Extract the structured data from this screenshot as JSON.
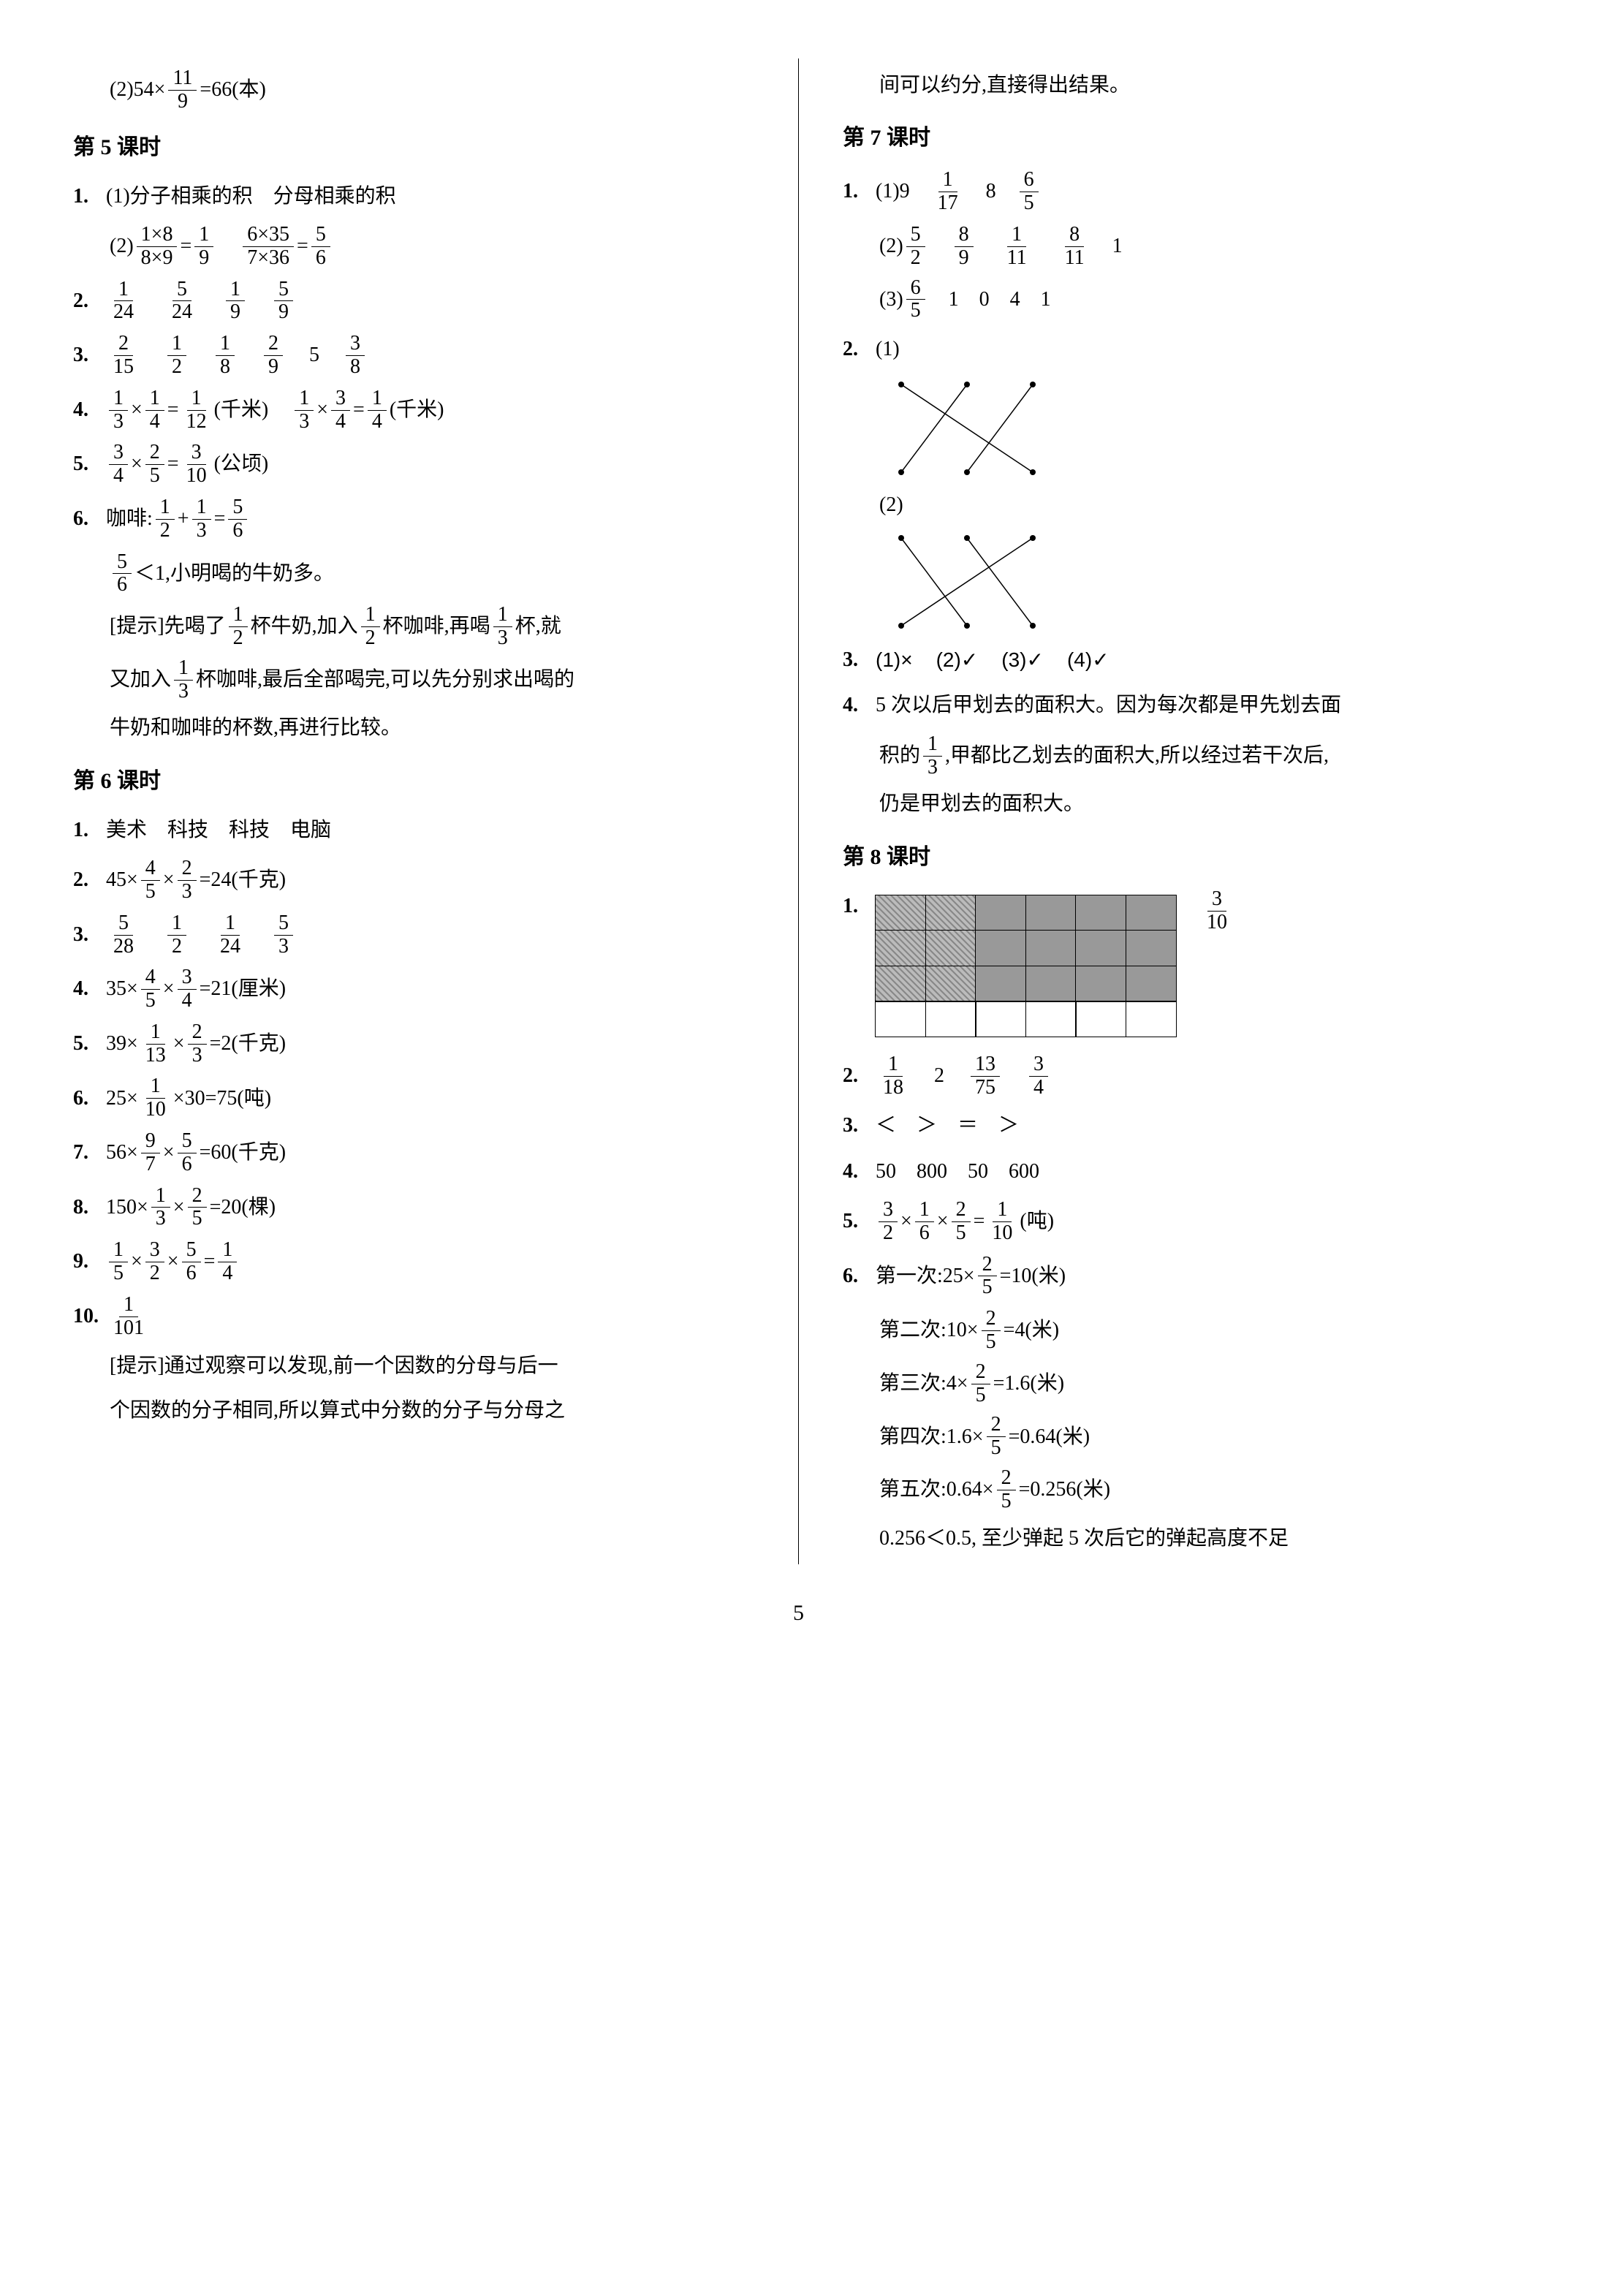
{
  "left": {
    "top_eq": {
      "prefix": "(2)54×",
      "f_n": "11",
      "f_d": "9",
      "suffix": "=66(本)"
    },
    "lesson5": "第 5 课时",
    "l5_1_1": {
      "num": "1.",
      "text": "(1)分子相乘的积　分母相乘的积"
    },
    "l5_1_2": {
      "prefix": "(2)",
      "a_n": "1×8",
      "a_d": "8×9",
      "eq1": "=",
      "b_n": "1",
      "b_d": "9",
      "gap": "　",
      "c_n": "6×35",
      "c_d": "7×36",
      "eq2": "=",
      "d_n": "5",
      "d_d": "6"
    },
    "l5_2": {
      "num": "2.",
      "f1_n": "1",
      "f1_d": "24",
      "f2_n": "5",
      "f2_d": "24",
      "f3_n": "1",
      "f3_d": "9",
      "f4_n": "5",
      "f4_d": "9"
    },
    "l5_3": {
      "num": "3.",
      "f1_n": "2",
      "f1_d": "15",
      "f2_n": "1",
      "f2_d": "2",
      "f3_n": "1",
      "f3_d": "8",
      "f4_n": "2",
      "f4_d": "9",
      "v5": "5",
      "f6_n": "3",
      "f6_d": "8"
    },
    "l5_4": {
      "num": "4.",
      "a_n": "1",
      "a_d": "3",
      "b_n": "1",
      "b_d": "4",
      "c_n": "1",
      "c_d": "12",
      "u1": "(千米)",
      "d_n": "1",
      "d_d": "3",
      "e_n": "3",
      "e_d": "4",
      "f_n": "1",
      "f_d": "4",
      "u2": "(千米)"
    },
    "l5_5": {
      "num": "5.",
      "a_n": "3",
      "a_d": "4",
      "b_n": "2",
      "b_d": "5",
      "c_n": "3",
      "c_d": "10",
      "u": "(公顷)"
    },
    "l5_6": {
      "num": "6.",
      "label": "咖啡:",
      "a_n": "1",
      "a_d": "2",
      "b_n": "1",
      "b_d": "3",
      "c_n": "5",
      "c_d": "6"
    },
    "l5_6b": {
      "a_n": "5",
      "a_d": "6",
      "text": "＜1,小明喝的牛奶多。"
    },
    "l5_6c1": {
      "prefix": "[提示]先喝了",
      "a_n": "1",
      "a_d": "2",
      "mid1": "杯牛奶,加入",
      "b_n": "1",
      "b_d": "2",
      "mid2": "杯咖啡,再喝",
      "c_n": "1",
      "c_d": "3",
      "suffix": "杯,就"
    },
    "l5_6c2": {
      "prefix": "又加入",
      "a_n": "1",
      "a_d": "3",
      "suffix": "杯咖啡,最后全部喝完,可以先分别求出喝的"
    },
    "l5_6c3": "牛奶和咖啡的杯数,再进行比较。",
    "lesson6": "第 6 课时",
    "l6_1": {
      "num": "1.",
      "text": "美术　科技　科技　电脑"
    },
    "l6_2": {
      "num": "2.",
      "prefix": "45×",
      "a_n": "4",
      "a_d": "5",
      "mid": "×",
      "b_n": "2",
      "b_d": "3",
      "suffix": "=24(千克)"
    },
    "l6_3": {
      "num": "3.",
      "f1_n": "5",
      "f1_d": "28",
      "f2_n": "1",
      "f2_d": "2",
      "f3_n": "1",
      "f3_d": "24",
      "f4_n": "5",
      "f4_d": "3"
    },
    "l6_4": {
      "num": "4.",
      "prefix": "35×",
      "a_n": "4",
      "a_d": "5",
      "mid": "×",
      "b_n": "3",
      "b_d": "4",
      "suffix": "=21(厘米)"
    },
    "l6_5": {
      "num": "5.",
      "prefix": "39×",
      "a_n": "1",
      "a_d": "13",
      "mid": "×",
      "b_n": "2",
      "b_d": "3",
      "suffix": "=2(千克)"
    },
    "l6_6": {
      "num": "6.",
      "prefix": "25×",
      "a_n": "1",
      "a_d": "10",
      "suffix": "×30=75(吨)"
    },
    "l6_7": {
      "num": "7.",
      "prefix": "56×",
      "a_n": "9",
      "a_d": "7",
      "mid": "×",
      "b_n": "5",
      "b_d": "6",
      "suffix": "=60(千克)"
    },
    "l6_8": {
      "num": "8.",
      "prefix": "150×",
      "a_n": "1",
      "a_d": "3",
      "mid": "×",
      "b_n": "2",
      "b_d": "5",
      "suffix": "=20(棵)"
    },
    "l6_9": {
      "num": "9.",
      "a_n": "1",
      "a_d": "5",
      "b_n": "3",
      "b_d": "2",
      "c_n": "5",
      "c_d": "6",
      "d_n": "1",
      "d_d": "4"
    },
    "l6_10": {
      "num": "10.",
      "a_n": "1",
      "a_d": "101"
    },
    "l6_10b": "[提示]通过观察可以发现,前一个因数的分母与后一",
    "l6_10c": "个因数的分子相同,所以算式中分数的分子与分母之"
  },
  "right": {
    "top": "间可以约分,直接得出结果。",
    "lesson7": "第 7 课时",
    "l7_1_1": {
      "num": "1.",
      "prefix": "(1)9　",
      "a_n": "1",
      "a_d": "17",
      "mid": "　8　",
      "b_n": "6",
      "b_d": "5"
    },
    "l7_1_2": {
      "prefix": "(2)",
      "a_n": "5",
      "a_d": "2",
      "b_n": "8",
      "b_d": "9",
      "c_n": "1",
      "c_d": "11",
      "d_n": "8",
      "d_d": "11",
      "suffix": "　1"
    },
    "l7_1_3": {
      "prefix": "(3)",
      "a_n": "6",
      "a_d": "5",
      "suffix": "　1　0　4　1"
    },
    "l7_2": {
      "num": "2.",
      "p1": "(1)",
      "p2": "(2)"
    },
    "l7_3": {
      "num": "3.",
      "a": "(1)×",
      "b": "(2)✓",
      "c": "(3)✓",
      "d": "(4)✓"
    },
    "l7_4a": {
      "num": "4.",
      "text": "5 次以后甲划去的面积大。因为每次都是甲先划去面"
    },
    "l7_4b": {
      "prefix": "积的",
      "a_n": "1",
      "a_d": "3",
      "suffix": ",甲都比乙划去的面积大,所以经过若干次后,"
    },
    "l7_4c": "仍是甲划去的面积大。",
    "lesson8": "第 8 课时",
    "l8_1": {
      "num": "1.",
      "ans_n": "3",
      "ans_d": "10"
    },
    "grid": {
      "rows": 4,
      "cols": 6,
      "pattern": [
        [
          "h",
          "h",
          "g",
          "g",
          "g",
          "g"
        ],
        [
          "h",
          "h",
          "g",
          "g",
          "g",
          "g"
        ],
        [
          "h",
          "h",
          "g",
          "g",
          "g",
          "g"
        ],
        [
          "w",
          "w",
          "w",
          "w",
          "w",
          "w"
        ]
      ]
    },
    "l8_2": {
      "num": "2.",
      "a_n": "1",
      "a_d": "18",
      "v2": "2",
      "c_n": "13",
      "c_d": "75",
      "d_n": "3",
      "d_d": "4"
    },
    "l8_3": {
      "num": "3.",
      "text": "＜　＞　＝　＞"
    },
    "l8_4": {
      "num": "4.",
      "text": "50　800　50　600"
    },
    "l8_5": {
      "num": "5.",
      "a_n": "3",
      "a_d": "2",
      "b_n": "1",
      "b_d": "6",
      "c_n": "2",
      "c_d": "5",
      "d_n": "1",
      "d_d": "10",
      "u": "(吨)"
    },
    "l8_6a": {
      "num": "6.",
      "prefix": "第一次:25×",
      "a_n": "2",
      "a_d": "5",
      "suffix": "=10(米)"
    },
    "l8_6b": {
      "prefix": "第二次:10×",
      "a_n": "2",
      "a_d": "5",
      "suffix": "=4(米)"
    },
    "l8_6c": {
      "prefix": "第三次:4×",
      "a_n": "2",
      "a_d": "5",
      "suffix": "=1.6(米)"
    },
    "l8_6d": {
      "prefix": "第四次:1.6×",
      "a_n": "2",
      "a_d": "5",
      "suffix": "=0.64(米)"
    },
    "l8_6e": {
      "prefix": "第五次:0.64×",
      "a_n": "2",
      "a_d": "5",
      "suffix": "=0.256(米)"
    },
    "l8_6f": "0.256＜0.5, 至少弹起 5 次后它的弹起高度不足"
  },
  "page": "5"
}
